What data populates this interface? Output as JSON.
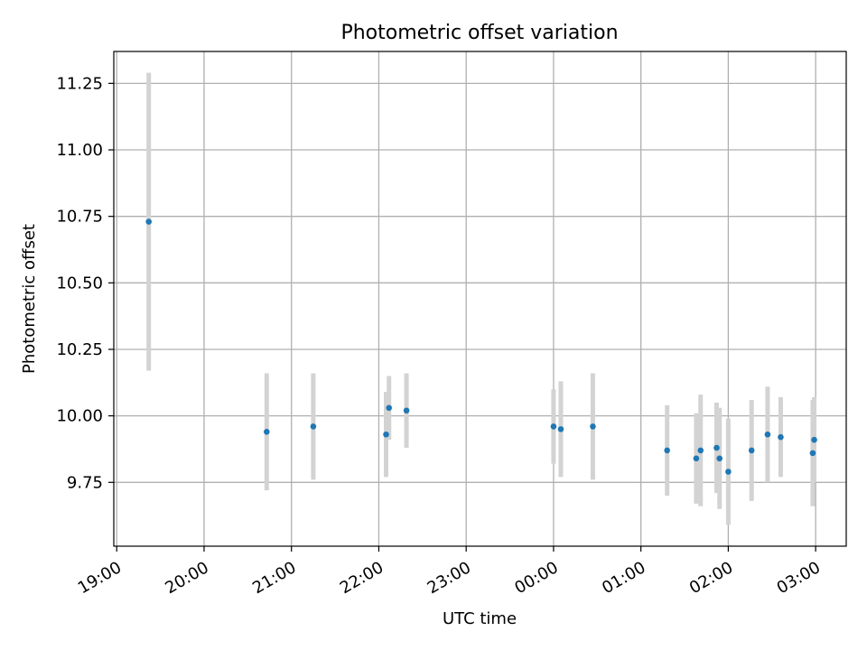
{
  "chart_data": {
    "type": "scatter",
    "title": "Photometric offset variation",
    "xlabel": "UTC time",
    "ylabel": "Photometric offset",
    "x_axis_type": "time",
    "xlim": [
      "18:58",
      "03:21"
    ],
    "ylim": [
      9.51,
      11.37
    ],
    "x_tick_labels": [
      "19:00",
      "20:00",
      "21:00",
      "22:00",
      "23:00",
      "00:00",
      "01:00",
      "02:00",
      "03:00"
    ],
    "x_tick_values": [
      "19:00",
      "20:00",
      "21:00",
      "22:00",
      "23:00",
      "00:00",
      "01:00",
      "02:00",
      "03:00"
    ],
    "y_tick_labels": [
      "9.75",
      "10.00",
      "10.25",
      "10.50",
      "10.75",
      "11.00",
      "11.25"
    ],
    "y_tick_values": [
      9.75,
      10.0,
      10.25,
      10.5,
      10.75,
      11.0,
      11.25
    ],
    "grid": true,
    "legend": "none",
    "colors": {
      "points": "#1f77b4",
      "error_bars": "#d3d3d3",
      "grid": "#b0b0b0"
    },
    "points": [
      {
        "x": "19:22",
        "y": 10.73,
        "yerr": 0.56
      },
      {
        "x": "20:43",
        "y": 9.94,
        "yerr": 0.22
      },
      {
        "x": "21:15",
        "y": 9.96,
        "yerr": 0.2
      },
      {
        "x": "22:05",
        "y": 9.93,
        "yerr": 0.16
      },
      {
        "x": "22:07",
        "y": 10.03,
        "yerr": 0.12
      },
      {
        "x": "22:19",
        "y": 10.02,
        "yerr": 0.14
      },
      {
        "x": "00:00",
        "y": 9.96,
        "yerr": 0.14
      },
      {
        "x": "00:05",
        "y": 9.95,
        "yerr": 0.18
      },
      {
        "x": "00:27",
        "y": 9.96,
        "yerr": 0.2
      },
      {
        "x": "01:18",
        "y": 9.87,
        "yerr": 0.17
      },
      {
        "x": "01:38",
        "y": 9.84,
        "yerr": 0.17
      },
      {
        "x": "01:41",
        "y": 9.87,
        "yerr": 0.21
      },
      {
        "x": "01:52",
        "y": 9.88,
        "yerr": 0.17
      },
      {
        "x": "01:54",
        "y": 9.84,
        "yerr": 0.19
      },
      {
        "x": "02:00",
        "y": 9.79,
        "yerr": 0.2
      },
      {
        "x": "02:16",
        "y": 9.87,
        "yerr": 0.19
      },
      {
        "x": "02:27",
        "y": 9.93,
        "yerr": 0.18
      },
      {
        "x": "02:36",
        "y": 9.92,
        "yerr": 0.15
      },
      {
        "x": "02:58",
        "y": 9.86,
        "yerr": 0.2
      },
      {
        "x": "02:59",
        "y": 9.91,
        "yerr": 0.16
      }
    ]
  }
}
